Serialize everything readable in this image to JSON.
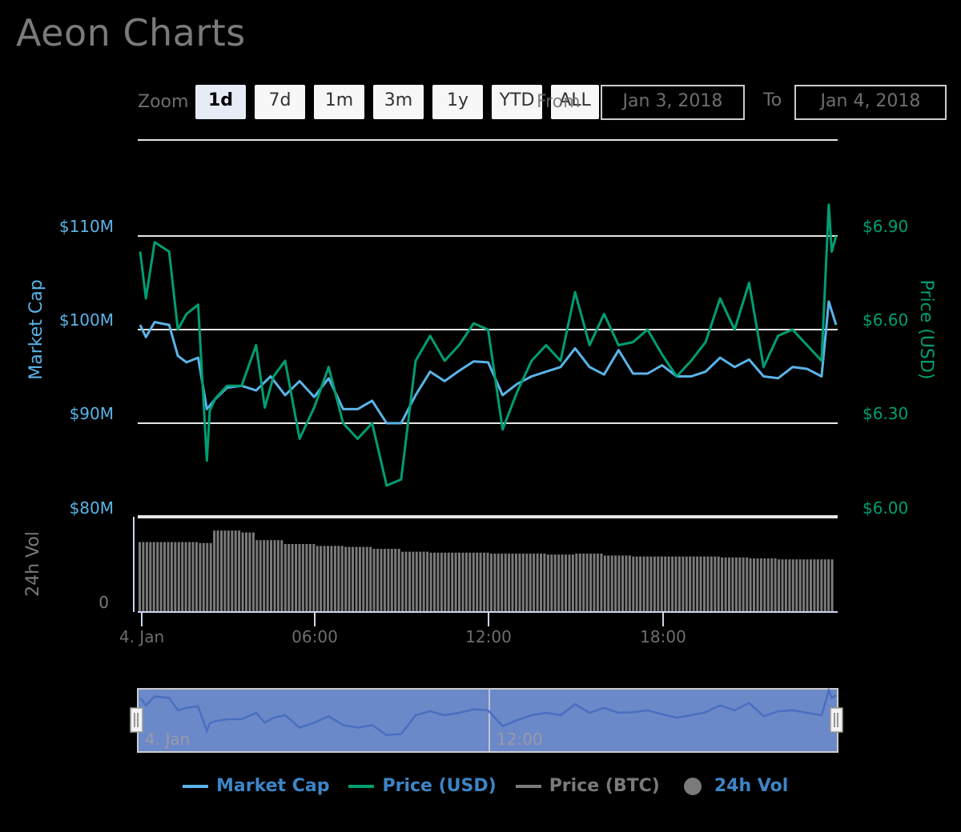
{
  "title": "Aeon Charts",
  "range_selector": {
    "zoom_label": "Zoom",
    "buttons": [
      "1d",
      "7d",
      "1m",
      "3m",
      "1y",
      "YTD",
      "ALL"
    ],
    "active": "1d",
    "from_label": "From",
    "from_value": "Jan 3, 2018",
    "to_label": "To",
    "to_value": "Jan 4, 2018"
  },
  "colors": {
    "market_cap": "#5ab4e8",
    "price_usd": "#009e73",
    "price_btc": "#7a7a7a",
    "volume": "#7a7a7a",
    "navigator_fill": "#6b88c8",
    "navigator_line": "#4a6fc0",
    "legend_text": "#3d85c6",
    "legend_text_hidden": "#7a7a7a"
  },
  "legend": [
    {
      "label": "Market Cap",
      "type": "line",
      "color": "#5ab4e8",
      "text_color": "#3d85c6"
    },
    {
      "label": "Price (USD)",
      "type": "line",
      "color": "#009e73",
      "text_color": "#3d85c6"
    },
    {
      "label": "Price (BTC)",
      "type": "line",
      "color": "#7a7a7a",
      "text_color": "#7a7a7a"
    },
    {
      "label": "24h Vol",
      "type": "dot",
      "color": "#7a7a7a",
      "text_color": "#3d85c6"
    }
  ],
  "axes": {
    "left_title": "Market Cap",
    "left_ticks": [
      "$110M",
      "$100M",
      "$90M",
      "$80M"
    ],
    "right_title": "Price (USD)",
    "right_ticks": [
      "$6.90",
      "$6.60",
      "$6.30",
      "$6.00"
    ],
    "vol_title": "24h Vol",
    "vol_tick": "0",
    "x_ticks": [
      "4. Jan",
      "06:00",
      "12:00",
      "18:00"
    ],
    "navigator_ticks": [
      "4. Jan",
      "12:00"
    ]
  },
  "chart_data": {
    "type": "line",
    "title": "Aeon Charts",
    "xlabel": "",
    "x_range": [
      "2018-01-04 00:00",
      "2018-01-05 00:00"
    ],
    "x_tick_labels": [
      "4. Jan",
      "06:00",
      "12:00",
      "18:00"
    ],
    "grid": true,
    "legend_position": "bottom",
    "series": [
      {
        "name": "Market Cap",
        "axis": "left",
        "ylabel": "Market Cap",
        "ylim": [
          80,
          120
        ],
        "unit": "$M",
        "x_hours": [
          0,
          0.2,
          0.5,
          1.0,
          1.3,
          1.6,
          2.0,
          2.3,
          2.6,
          3.0,
          3.5,
          4.0,
          4.5,
          5.0,
          5.5,
          6.0,
          6.5,
          7.0,
          7.5,
          8.0,
          8.5,
          9.0,
          9.5,
          10.0,
          10.5,
          11.0,
          11.5,
          12.0,
          12.5,
          13.0,
          13.5,
          14.0,
          14.5,
          15.0,
          15.5,
          16.0,
          16.5,
          17.0,
          17.5,
          18.0,
          18.5,
          19.0,
          19.5,
          20.0,
          20.5,
          21.0,
          21.5,
          22.0,
          22.5,
          23.0,
          23.5,
          23.75,
          24.0
        ],
        "values": [
          100.5,
          99.2,
          100.8,
          100.5,
          97.2,
          96.5,
          97.0,
          91.5,
          92.6,
          93.8,
          94.0,
          93.5,
          95.0,
          93.0,
          94.5,
          92.8,
          94.8,
          91.5,
          91.5,
          92.4,
          90.0,
          90.0,
          93.0,
          95.5,
          94.5,
          95.6,
          96.6,
          96.5,
          93.0,
          94.2,
          95.0,
          95.5,
          96.0,
          98.0,
          96.0,
          95.2,
          97.8,
          95.3,
          95.3,
          96.2,
          95.0,
          95.0,
          95.5,
          97.0,
          96.0,
          96.8,
          95.0,
          94.8,
          96.0,
          95.8,
          95.0,
          103.0,
          100.5
        ]
      },
      {
        "name": "Price (USD)",
        "axis": "right",
        "ylabel": "Price (USD)",
        "ylim": [
          6.0,
          7.05
        ],
        "unit": "USD",
        "x_hours": [
          0,
          0.2,
          0.5,
          1.0,
          1.3,
          1.6,
          2.0,
          2.3,
          2.4,
          2.6,
          3.0,
          3.5,
          4.0,
          4.3,
          4.6,
          5.0,
          5.5,
          6.0,
          6.5,
          7.0,
          7.5,
          8.0,
          8.5,
          9.0,
          9.5,
          10.0,
          10.5,
          11.0,
          11.5,
          12.0,
          12.5,
          13.0,
          13.5,
          14.0,
          14.5,
          15.0,
          15.5,
          16.0,
          16.5,
          17.0,
          17.5,
          18.0,
          18.5,
          19.0,
          19.5,
          20.0,
          20.5,
          21.0,
          21.5,
          22.0,
          22.5,
          23.0,
          23.5,
          23.75,
          23.85,
          24.0
        ],
        "values": [
          6.85,
          6.7,
          6.88,
          6.85,
          6.6,
          6.65,
          6.68,
          6.18,
          6.34,
          6.38,
          6.42,
          6.42,
          6.55,
          6.35,
          6.45,
          6.5,
          6.25,
          6.35,
          6.48,
          6.3,
          6.25,
          6.3,
          6.1,
          6.12,
          6.5,
          6.58,
          6.5,
          6.55,
          6.62,
          6.6,
          6.28,
          6.4,
          6.5,
          6.55,
          6.5,
          6.72,
          6.55,
          6.65,
          6.55,
          6.56,
          6.6,
          6.52,
          6.45,
          6.5,
          6.56,
          6.7,
          6.6,
          6.75,
          6.48,
          6.58,
          6.6,
          6.55,
          6.5,
          7.0,
          6.85,
          6.9
        ]
      },
      {
        "name": "24h Vol",
        "axis": "volume",
        "ylabel": "24h Vol",
        "type": "bar",
        "unit": "relative",
        "x_hours": [
          0,
          1,
          2,
          2.5,
          3,
          3.5,
          4,
          5,
          6,
          7,
          8,
          9,
          10,
          11,
          12,
          13,
          14,
          15,
          16,
          17,
          18,
          19,
          20,
          21,
          22,
          23,
          23.9
        ],
        "values": [
          72,
          72,
          71,
          84,
          84,
          82,
          74,
          70,
          68,
          67,
          65,
          62,
          61,
          61,
          60,
          60,
          59,
          60,
          58,
          57,
          57,
          57,
          56,
          55,
          54,
          54,
          56
        ]
      },
      {
        "name": "Price (BTC)",
        "axis": "hidden",
        "visible": false,
        "values": []
      }
    ]
  }
}
